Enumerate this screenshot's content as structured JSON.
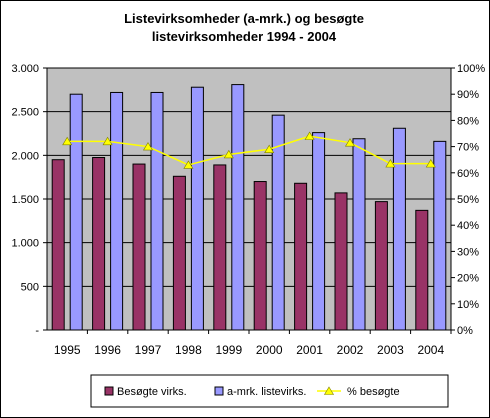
{
  "chart_data": {
    "type": "bar",
    "title_line1": "Listevirksomheder (a-mrk.) og besøgte",
    "title_line2": "listevirksomheder 1994 - 2004",
    "categories": [
      "1995",
      "1996",
      "1997",
      "1998",
      "1999",
      "2000",
      "2001",
      "2002",
      "2003",
      "2004"
    ],
    "series": [
      {
        "name": "Besøgte virks.",
        "type": "bar",
        "axis": "left",
        "color": "#993366",
        "values": [
          1950,
          1975,
          1900,
          1760,
          1890,
          1700,
          1680,
          1570,
          1470,
          1370
        ]
      },
      {
        "name": "a-mrk. listevirks.",
        "type": "bar",
        "axis": "left",
        "color": "#9999ff",
        "values": [
          2700,
          2720,
          2720,
          2780,
          2810,
          2460,
          2260,
          2190,
          2310,
          2160
        ]
      },
      {
        "name": "% besøgte",
        "type": "line",
        "axis": "right",
        "color": "#ffff00",
        "values": [
          72,
          72,
          70,
          63,
          67,
          69,
          74,
          71.5,
          63.5,
          63.5
        ]
      }
    ],
    "y_left": {
      "min": 0,
      "max": 3000,
      "ticks": [
        0,
        500,
        1000,
        1500,
        2000,
        2500,
        3000
      ],
      "tick_labels": [
        "-",
        "500",
        "1.000",
        "1.500",
        "2.000",
        "2.500",
        "3.000"
      ]
    },
    "y_right": {
      "min": 0,
      "max": 100,
      "ticks": [
        0,
        10,
        20,
        30,
        40,
        50,
        60,
        70,
        80,
        90,
        100
      ],
      "tick_labels": [
        "0%",
        "10%",
        "20%",
        "30%",
        "40%",
        "50%",
        "60%",
        "70%",
        "80%",
        "90%",
        "100%"
      ]
    },
    "plot_background": "#c0c0c0",
    "grid": true,
    "legend_position": "bottom"
  }
}
